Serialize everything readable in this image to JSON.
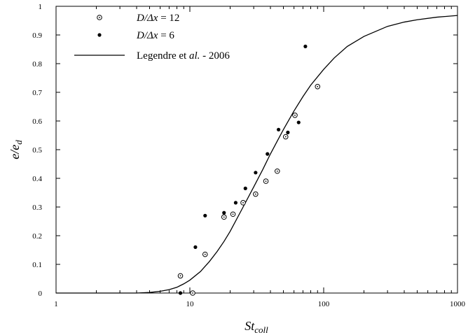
{
  "chart_data": {
    "type": "scatter",
    "xscale": "log",
    "xlim": [
      1,
      1000
    ],
    "ylim": [
      0,
      1
    ],
    "xticks": [
      "1",
      "10",
      "100",
      "1000"
    ],
    "yticks": [
      "0",
      "0.1",
      "0.2",
      "0.3",
      "0.4",
      "0.5",
      "0.6",
      "0.7",
      "0.8",
      "0.9",
      "1"
    ],
    "xlabel": {
      "main": "St",
      "sub": "coll"
    },
    "ylabel": {
      "main": "e/e",
      "sub": "d"
    },
    "legend": {
      "placement": "top-left",
      "entries": [
        {
          "pre": "D/Δx",
          "post": " = 12"
        },
        {
          "pre": "D/Δx",
          "post": " = 6"
        },
        {
          "pre": "Legendre et ",
          "ital": "al.",
          "post": " - 2006"
        }
      ]
    },
    "series": [
      {
        "marker": "open-circle-dot",
        "points": [
          [
            8.5,
            0.06
          ],
          [
            10.5,
            0.0
          ],
          [
            13,
            0.135
          ],
          [
            18,
            0.265
          ],
          [
            21,
            0.275
          ],
          [
            25,
            0.315
          ],
          [
            31,
            0.345
          ],
          [
            37,
            0.39
          ],
          [
            45,
            0.425
          ],
          [
            52,
            0.545
          ],
          [
            61,
            0.62
          ],
          [
            90,
            0.72
          ]
        ]
      },
      {
        "marker": "filled-circle",
        "points": [
          [
            8.5,
            0.0
          ],
          [
            11,
            0.16
          ],
          [
            13,
            0.27
          ],
          [
            18,
            0.28
          ],
          [
            22,
            0.315
          ],
          [
            26,
            0.365
          ],
          [
            31,
            0.42
          ],
          [
            38,
            0.485
          ],
          [
            46,
            0.57
          ],
          [
            54,
            0.56
          ],
          [
            65,
            0.595
          ],
          [
            73,
            0.86
          ]
        ]
      },
      {
        "marker": "line",
        "points": [
          [
            4,
            0.0
          ],
          [
            5,
            0.002
          ],
          [
            6,
            0.006
          ],
          [
            7,
            0.012
          ],
          [
            8,
            0.02
          ],
          [
            9,
            0.032
          ],
          [
            10,
            0.045
          ],
          [
            12,
            0.075
          ],
          [
            14,
            0.11
          ],
          [
            16,
            0.145
          ],
          [
            18,
            0.18
          ],
          [
            20,
            0.215
          ],
          [
            25,
            0.3
          ],
          [
            30,
            0.37
          ],
          [
            35,
            0.43
          ],
          [
            40,
            0.485
          ],
          [
            45,
            0.53
          ],
          [
            50,
            0.57
          ],
          [
            60,
            0.635
          ],
          [
            70,
            0.685
          ],
          [
            80,
            0.725
          ],
          [
            100,
            0.78
          ],
          [
            120,
            0.82
          ],
          [
            150,
            0.86
          ],
          [
            200,
            0.895
          ],
          [
            300,
            0.93
          ],
          [
            400,
            0.945
          ],
          [
            500,
            0.953
          ],
          [
            700,
            0.962
          ],
          [
            1000,
            0.968
          ]
        ]
      }
    ],
    "colors": {
      "axes": "#000000",
      "markers": "#000000"
    }
  }
}
